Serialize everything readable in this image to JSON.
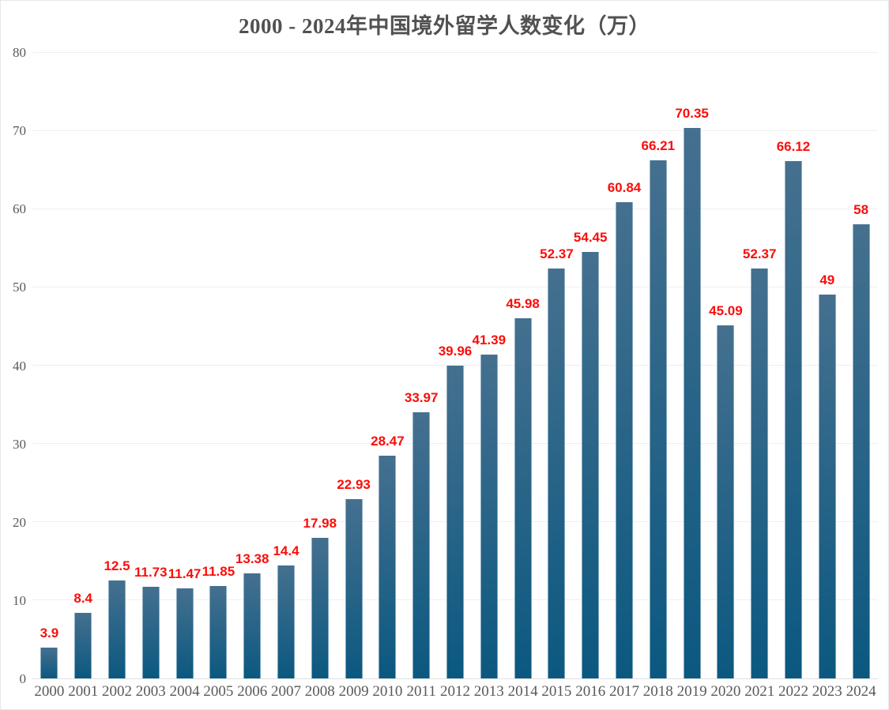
{
  "title": "2000 - 2024年中国境外留学人数变化（万）",
  "chart_data": {
    "type": "bar",
    "title": "2000 - 2024年中国境外留学人数变化（万）",
    "categories": [
      "2000",
      "2001",
      "2002",
      "2003",
      "2004",
      "2005",
      "2006",
      "2007",
      "2008",
      "2009",
      "2010",
      "2011",
      "2012",
      "2013",
      "2014",
      "2015",
      "2016",
      "2017",
      "2018",
      "2019",
      "2020",
      "2021",
      "2022",
      "2023",
      "2024"
    ],
    "values": [
      3.9,
      8.4,
      12.5,
      11.73,
      11.47,
      11.85,
      13.38,
      14.4,
      17.98,
      22.93,
      28.47,
      33.97,
      39.96,
      41.39,
      45.98,
      52.37,
      54.45,
      60.84,
      66.21,
      70.35,
      45.09,
      52.37,
      66.12,
      49,
      58
    ],
    "value_labels": [
      "3.9",
      "8.4",
      "12.5",
      "11.73",
      "11.47",
      "11.85",
      "13.38",
      "14.4",
      "17.98",
      "22.93",
      "28.47",
      "33.97",
      "39.96",
      "41.39",
      "45.98",
      "52.37",
      "54.45",
      "60.84",
      "66.21",
      "70.35",
      "45.09",
      "52.37",
      "66.12",
      "49",
      "58"
    ],
    "y_ticks": [
      0,
      10,
      20,
      30,
      40,
      50,
      60,
      70,
      80
    ],
    "ylim": [
      0,
      80
    ],
    "xlabel": "",
    "ylabel": "",
    "grid": true,
    "legend": "none",
    "colors": {
      "bar_gradient_top": "#45708f",
      "bar_gradient_bottom": "#0b5880",
      "value_label": "#fb0d0a",
      "axis_text": "#595959",
      "title_text": "#515151",
      "gridline": "#efefef",
      "axis_line": "#e0e0e0",
      "background": "#ffffff"
    }
  }
}
